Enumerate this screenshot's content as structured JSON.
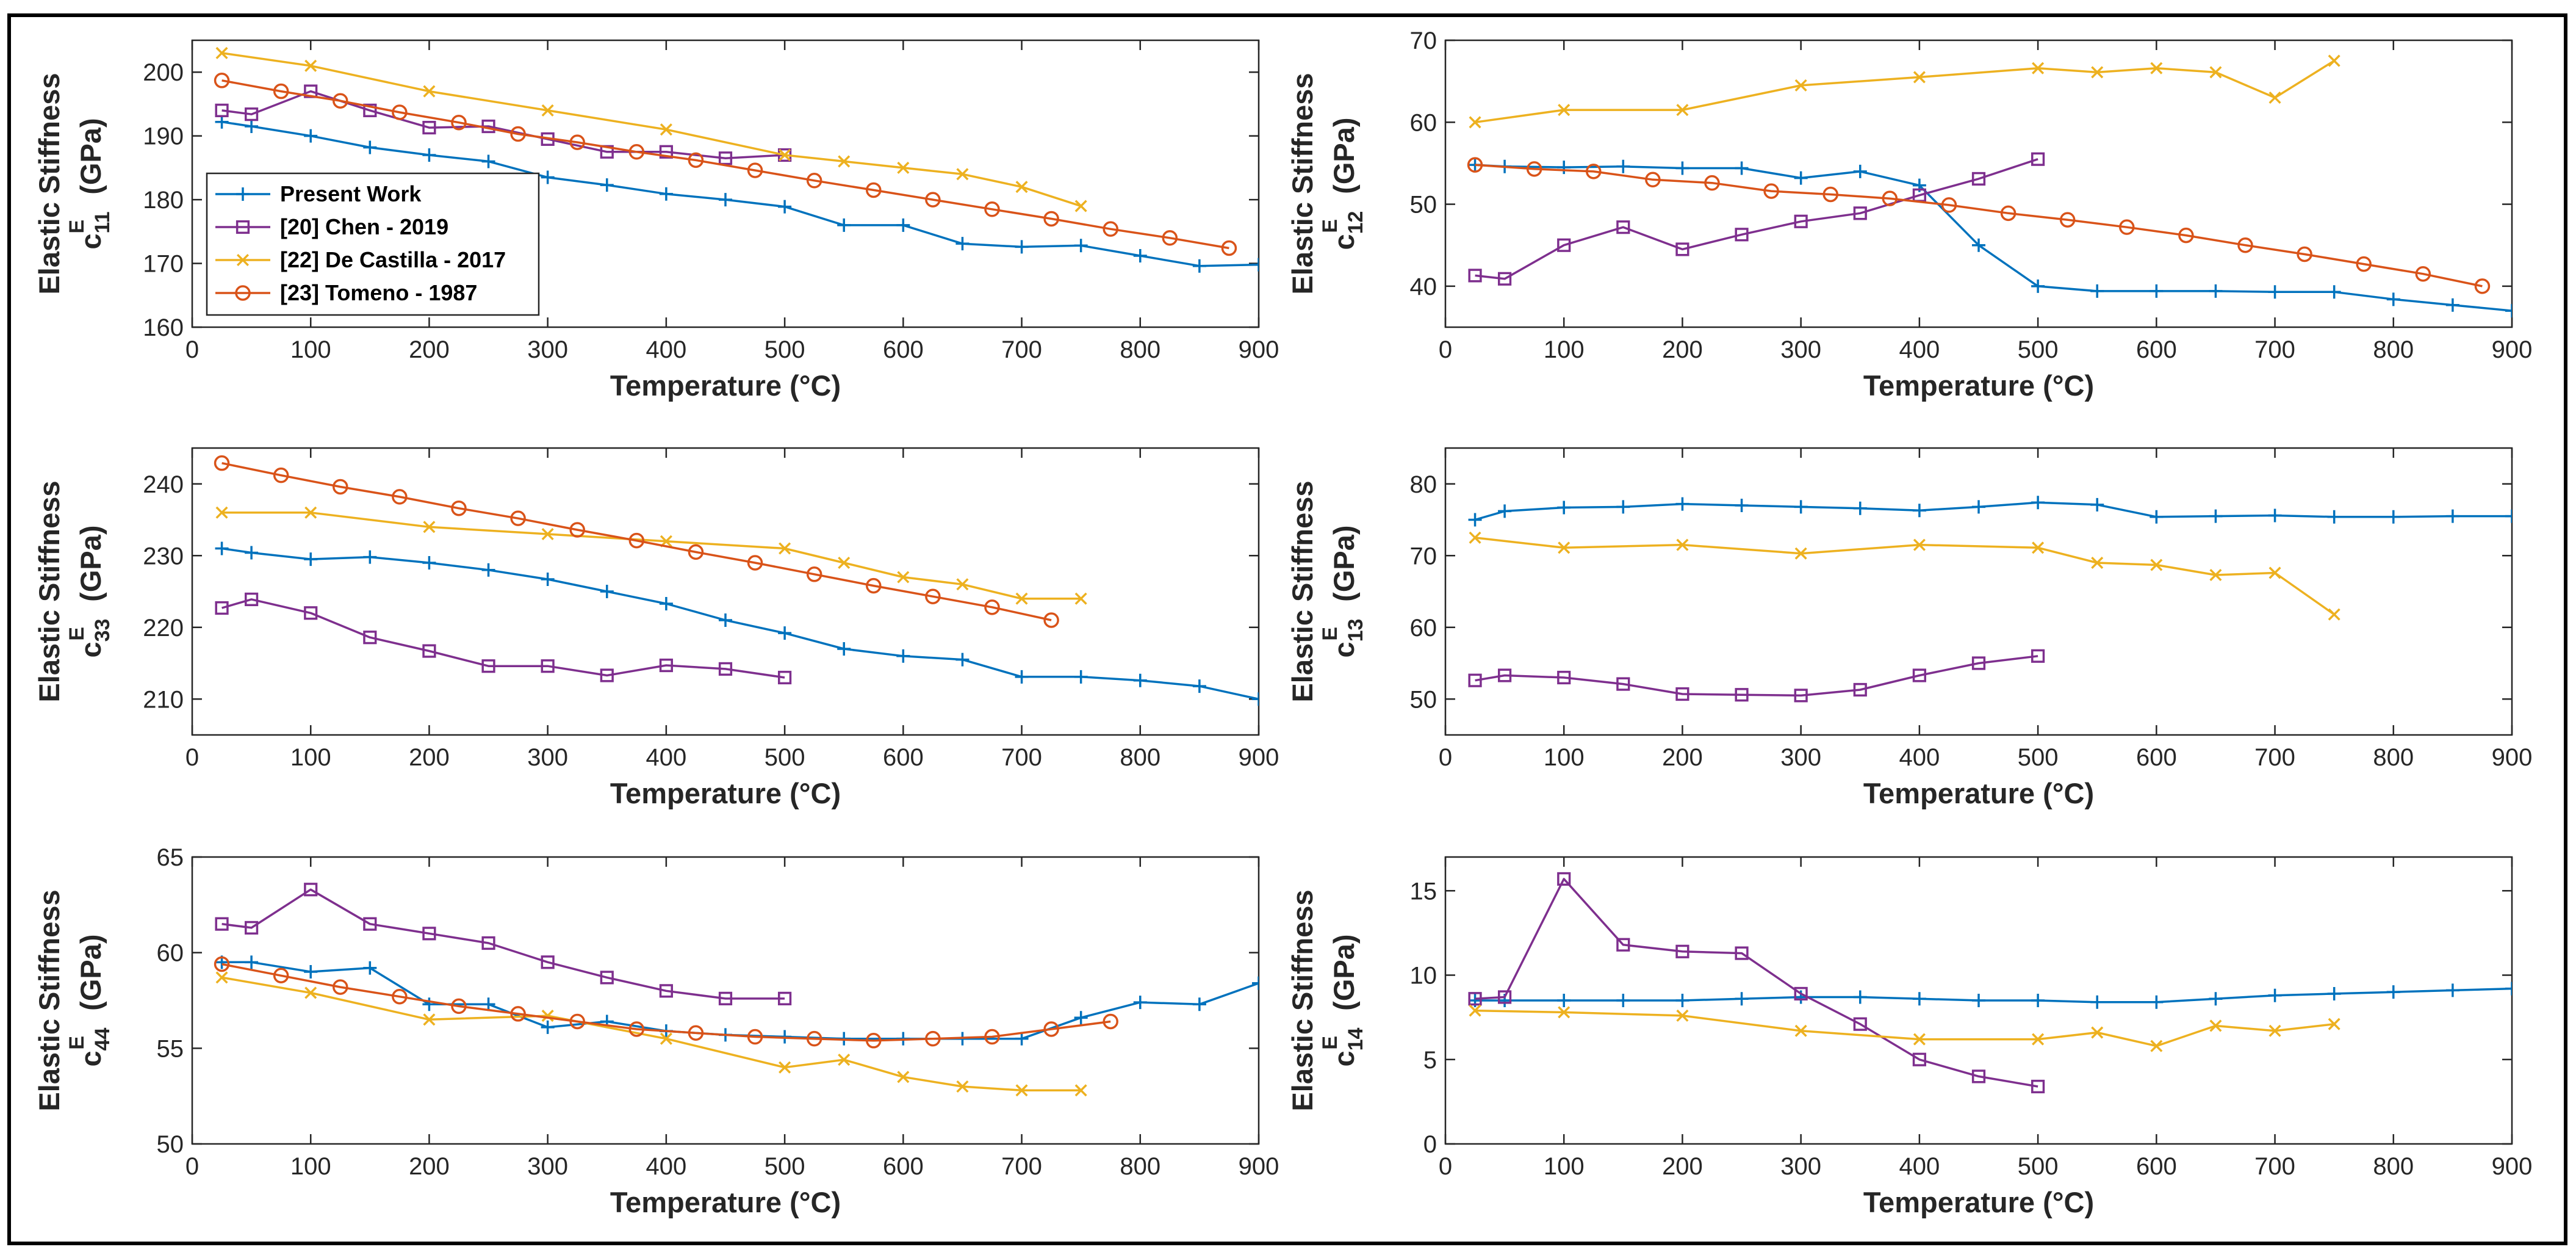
{
  "chart_data": {
    "type": "line",
    "legend": {
      "placement": "bottom-left of first panel",
      "entries": [
        "Present Work",
        "[20] Chen - 2019",
        "[22] De Castilla - 2017",
        "[23] Tomeno - 1987"
      ]
    },
    "series_styles": [
      {
        "name": "Present Work",
        "color": "#0072BD",
        "marker": "plus"
      },
      {
        "name": "[20] Chen - 2019",
        "color": "#7E2F8E",
        "marker": "square"
      },
      {
        "name": "[22] De Castilla - 2017",
        "color": "#EDB120",
        "marker": "x"
      },
      {
        "name": "[23] Tomeno - 1987",
        "color": "#D95319",
        "marker": "circle"
      }
    ],
    "panels": [
      {
        "id": "c11",
        "xlabel": "Temperature (°C)",
        "ylabel_line1": "Elastic Stiffness",
        "ylabel_symbol": "c",
        "ylabel_sup": "E",
        "ylabel_sub": "11",
        "ylabel_unit": "(GPa)",
        "xlim": [
          0,
          900
        ],
        "ylim": [
          160,
          205
        ],
        "xticks": [
          0,
          100,
          200,
          300,
          400,
          500,
          600,
          700,
          800,
          900
        ],
        "yticks": [
          160,
          170,
          180,
          190,
          200
        ],
        "show_legend": true,
        "series": [
          {
            "name": "Present Work",
            "x": [
              25,
              50,
              100,
              150,
              200,
              250,
              300,
              350,
              400,
              450,
              500,
              550,
              600,
              650,
              700,
              750,
              800,
              850,
              900
            ],
            "y": [
              192.2,
              191.5,
              190,
              188.2,
              187,
              186,
              183.5,
              182.3,
              180.9,
              180,
              178.9,
              176,
              176,
              173.1,
              172.6,
              172.8,
              171.2,
              169.6,
              169.8
            ]
          },
          {
            "name": "[20] Chen - 2019",
            "x": [
              25,
              50,
              100,
              150,
              200,
              250,
              300,
              350,
              400,
              450,
              500
            ],
            "y": [
              194,
              193.4,
              197,
              194,
              191.3,
              191.5,
              189.5,
              187.5,
              187.5,
              186.5,
              187
            ]
          },
          {
            "name": "[22] De Castilla - 2017",
            "x": [
              25,
              100,
              200,
              300,
              400,
              500,
              550,
              600,
              650,
              700,
              750
            ],
            "y": [
              203,
              201,
              197,
              194,
              191,
              187,
              186,
              185,
              184,
              182,
              179
            ]
          },
          {
            "name": "[23] Tomeno - 1987",
            "x": [
              25,
              75,
              125,
              175,
              225,
              275,
              325,
              375,
              425,
              475,
              525,
              575,
              625,
              675,
              725,
              775,
              825,
              875
            ],
            "y": [
              198.7,
              197,
              195.5,
              193.7,
              192.1,
              190.3,
              189,
              187.5,
              186.2,
              184.6,
              183,
              181.5,
              180,
              178.5,
              177,
              175.4,
              174,
              172.4
            ]
          }
        ]
      },
      {
        "id": "c12",
        "xlabel": "Temperature (°C)",
        "ylabel_line1": "Elastic Stiffness",
        "ylabel_symbol": "c",
        "ylabel_sup": "E",
        "ylabel_sub": "12",
        "ylabel_unit": "(GPa)",
        "xlim": [
          0,
          900
        ],
        "ylim": [
          35,
          70
        ],
        "xticks": [
          0,
          100,
          200,
          300,
          400,
          500,
          600,
          700,
          800,
          900
        ],
        "yticks": [
          40,
          50,
          60,
          70
        ],
        "show_legend": false,
        "series": [
          {
            "name": "Present Work",
            "x": [
              25,
              50,
              100,
              150,
              200,
              250,
              300,
              350,
              400,
              450,
              500,
              550,
              600,
              650,
              700,
              750,
              800,
              850,
              900
            ],
            "y": [
              54.8,
              54.6,
              54.5,
              54.6,
              54.4,
              54.4,
              53.2,
              54,
              52.3,
              45,
              40,
              39.4,
              39.4,
              39.4,
              39.3,
              39.3,
              38.4,
              37.7,
              37
            ]
          },
          {
            "name": "[20] Chen - 2019",
            "x": [
              25,
              50,
              100,
              150,
              200,
              250,
              300,
              350,
              400,
              450,
              500
            ],
            "y": [
              41.3,
              40.9,
              45,
              47.2,
              44.5,
              46.3,
              47.9,
              48.9,
              51.1,
              53.1,
              55.5
            ]
          },
          {
            "name": "[22] De Castilla - 2017",
            "x": [
              25,
              100,
              200,
              300,
              400,
              500,
              550,
              600,
              650,
              700,
              750
            ],
            "y": [
              60,
              61.5,
              61.5,
              64.5,
              65.5,
              66.6,
              66.1,
              66.6,
              66.1,
              63,
              67.5
            ]
          },
          {
            "name": "[23] Tomeno - 1987",
            "x": [
              25,
              75,
              125,
              175,
              225,
              275,
              325,
              375,
              425,
              475,
              525,
              575,
              625,
              675,
              725,
              775,
              825,
              875
            ],
            "y": [
              54.8,
              54.3,
              54,
              53,
              52.6,
              51.6,
              51.2,
              50.7,
              49.9,
              48.9,
              48.1,
              47.2,
              46.2,
              45,
              43.9,
              42.7,
              41.5,
              40
            ]
          }
        ]
      },
      {
        "id": "c33",
        "xlabel": "Temperature (°C)",
        "ylabel_line1": "Elastic Stiffness",
        "ylabel_symbol": "c",
        "ylabel_sup": "E",
        "ylabel_sub": "33",
        "ylabel_unit": "(GPa)",
        "xlim": [
          0,
          900
        ],
        "ylim": [
          205,
          245
        ],
        "xticks": [
          0,
          100,
          200,
          300,
          400,
          500,
          600,
          700,
          800,
          900
        ],
        "yticks": [
          210,
          220,
          230,
          240
        ],
        "show_legend": false,
        "series": [
          {
            "name": "Present Work",
            "x": [
              25,
              50,
              100,
              150,
              200,
              250,
              300,
              350,
              400,
              450,
              500,
              550,
              600,
              650,
              700,
              750,
              800,
              850,
              900
            ],
            "y": [
              231,
              230.4,
              229.5,
              229.8,
              229,
              228,
              226.7,
              225,
              223.3,
              221,
              219.2,
              217,
              216,
              215.5,
              213.1,
              213.1,
              212.6,
              211.8,
              210
            ]
          },
          {
            "name": "[20] Chen - 2019",
            "x": [
              25,
              50,
              100,
              150,
              200,
              250,
              300,
              350,
              400,
              450,
              500
            ],
            "y": [
              222.7,
              223.9,
              222,
              218.6,
              216.7,
              214.6,
              214.6,
              213.3,
              214.7,
              214.2,
              213
            ]
          },
          {
            "name": "[22] De Castilla - 2017",
            "x": [
              25,
              100,
              200,
              300,
              400,
              500,
              550,
              600,
              650,
              700,
              750
            ],
            "y": [
              236,
              236,
              234,
              233,
              232,
              231,
              229,
              227,
              226,
              224,
              224
            ]
          },
          {
            "name": "[23] Tomeno - 1987",
            "x": [
              25,
              75,
              125,
              175,
              225,
              275,
              325,
              375,
              425,
              475,
              525,
              575,
              625,
              675,
              725
            ],
            "y": [
              242.9,
              241.2,
              239.6,
              238.2,
              236.6,
              235.2,
              233.6,
              232.1,
              230.5,
              229,
              227.4,
              225.8,
              224.3,
              222.8,
              221
            ]
          }
        ]
      },
      {
        "id": "c13",
        "xlabel": "Temperature (°C)",
        "ylabel_line1": "Elastic Stiffness",
        "ylabel_symbol": "c",
        "ylabel_sup": "E",
        "ylabel_sub": "13",
        "ylabel_unit": "(GPa)",
        "xlim": [
          0,
          900
        ],
        "ylim": [
          45,
          85
        ],
        "xticks": [
          0,
          100,
          200,
          300,
          400,
          500,
          600,
          700,
          800,
          900
        ],
        "yticks": [
          50,
          60,
          70,
          80
        ],
        "show_legend": false,
        "series": [
          {
            "name": "Present Work",
            "x": [
              25,
              50,
              100,
              150,
              200,
              250,
              300,
              350,
              400,
              450,
              500,
              550,
              600,
              650,
              700,
              750,
              800,
              850,
              900
            ],
            "y": [
              75,
              76.2,
              76.7,
              76.8,
              77.2,
              77,
              76.8,
              76.6,
              76.3,
              76.8,
              77.4,
              77.1,
              75.4,
              75.5,
              75.6,
              75.4,
              75.4,
              75.5,
              75.5
            ]
          },
          {
            "name": "[20] Chen - 2019",
            "x": [
              25,
              50,
              100,
              150,
              200,
              250,
              300,
              350,
              400,
              450,
              500
            ],
            "y": [
              52.6,
              53.3,
              53,
              52.1,
              50.7,
              50.6,
              50.5,
              51.3,
              53.3,
              55,
              56
            ]
          },
          {
            "name": "[22] De Castilla - 2017",
            "x": [
              25,
              100,
              200,
              300,
              400,
              500,
              550,
              600,
              650,
              700,
              750
            ],
            "y": [
              72.5,
              71.1,
              71.5,
              70.3,
              71.5,
              71.1,
              69,
              68.7,
              67.3,
              67.6,
              61.8
            ]
          }
        ]
      },
      {
        "id": "c44",
        "xlabel": "Temperature (°C)",
        "ylabel_line1": "Elastic Stiffness",
        "ylabel_symbol": "c",
        "ylabel_sup": "E",
        "ylabel_sub": "44",
        "ylabel_unit": "(GPa)",
        "xlim": [
          0,
          900
        ],
        "ylim": [
          50,
          65
        ],
        "xticks": [
          0,
          100,
          200,
          300,
          400,
          500,
          600,
          700,
          800,
          900
        ],
        "yticks": [
          50,
          55,
          60,
          65
        ],
        "show_legend": false,
        "series": [
          {
            "name": "Present Work",
            "x": [
              25,
              50,
              100,
              150,
              200,
              250,
              300,
              350,
              400,
              450,
              500,
              550,
              600,
              650,
              700,
              750,
              800,
              850,
              900
            ],
            "y": [
              59.5,
              59.5,
              59,
              59.2,
              57.3,
              57.3,
              56.1,
              56.4,
              55.9,
              55.7,
              55.6,
              55.5,
              55.5,
              55.5,
              55.5,
              56.6,
              57.4,
              57.3,
              58.4
            ]
          },
          {
            "name": "[20] Chen - 2019",
            "x": [
              25,
              50,
              100,
              150,
              200,
              250,
              300,
              350,
              400,
              450,
              500
            ],
            "y": [
              61.5,
              61.3,
              63.3,
              61.5,
              61,
              60.5,
              59.5,
              58.7,
              58,
              57.6,
              57.6
            ]
          },
          {
            "name": "[22] De Castilla - 2017",
            "x": [
              25,
              100,
              200,
              300,
              400,
              500,
              550,
              600,
              650,
              700,
              750
            ],
            "y": [
              58.7,
              57.9,
              56.5,
              56.7,
              55.5,
              54,
              54.4,
              53.5,
              53,
              52.8,
              52.8
            ]
          },
          {
            "name": "[23] Tomeno - 1987",
            "x": [
              25,
              75,
              125,
              175,
              225,
              275,
              325,
              375,
              425,
              475,
              525,
              575,
              625,
              675,
              725,
              775
            ],
            "y": [
              59.4,
              58.8,
              58.2,
              57.7,
              57.2,
              56.8,
              56.4,
              56,
              55.8,
              55.6,
              55.5,
              55.4,
              55.5,
              55.6,
              56,
              56.4
            ]
          }
        ]
      },
      {
        "id": "c14",
        "xlabel": "Temperature (°C)",
        "ylabel_line1": "Elastic Stiffness",
        "ylabel_symbol": "c",
        "ylabel_sup": "E",
        "ylabel_sub": "14",
        "ylabel_unit": "(GPa)",
        "xlim": [
          0,
          900
        ],
        "ylim": [
          0,
          17
        ],
        "xticks": [
          0,
          100,
          200,
          300,
          400,
          500,
          600,
          700,
          800,
          900
        ],
        "yticks": [
          0,
          5,
          10,
          15
        ],
        "show_legend": false,
        "series": [
          {
            "name": "Present Work",
            "x": [
              25,
              50,
              100,
              150,
              200,
              250,
              300,
              350,
              400,
              450,
              500,
              550,
              600,
              650,
              700,
              750,
              800,
              850,
              900
            ],
            "y": [
              8.5,
              8.5,
              8.5,
              8.5,
              8.5,
              8.6,
              8.7,
              8.7,
              8.6,
              8.5,
              8.5,
              8.4,
              8.4,
              8.6,
              8.8,
              8.9,
              9,
              9.1,
              9.2
            ]
          },
          {
            "name": "[20] Chen - 2019",
            "x": [
              25,
              50,
              100,
              150,
              200,
              250,
              300,
              350,
              400,
              450,
              500
            ],
            "y": [
              8.6,
              8.7,
              15.7,
              11.8,
              11.4,
              11.3,
              8.9,
              7.1,
              5,
              4,
              3.4
            ]
          },
          {
            "name": "[22] De Castilla - 2017",
            "x": [
              25,
              100,
              200,
              300,
              400,
              500,
              550,
              600,
              650,
              700,
              750
            ],
            "y": [
              7.9,
              7.8,
              7.6,
              6.7,
              6.2,
              6.2,
              6.6,
              5.8,
              7,
              6.7,
              7.1
            ]
          }
        ]
      }
    ]
  }
}
